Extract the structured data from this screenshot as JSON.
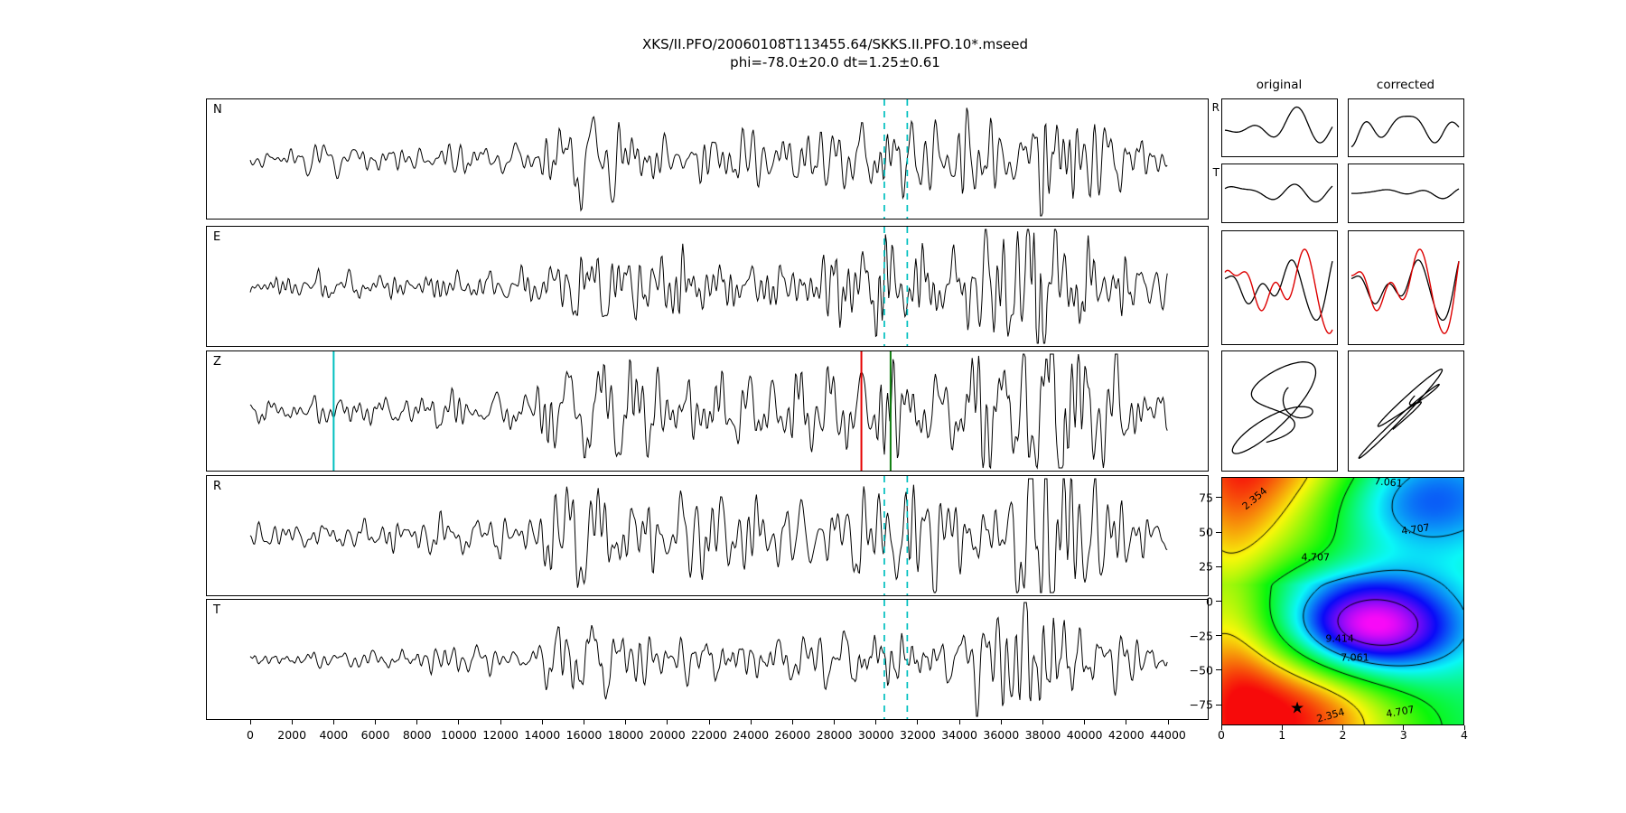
{
  "title": {
    "line1": "XKS/II.PFO/20060108T113455.64/SKKS.II.PFO.10*.mseed",
    "line2": "phi=-78.0±20.0 dt=1.25±0.61"
  },
  "chart_data": {
    "type": "seismic-shear-wave-splitting-diagnostic",
    "colors": {
      "trace": "#000000",
      "window": "#00bfbf",
      "pick_cyan": "#00bfbf",
      "pick_red": "#e60000",
      "pick_green": "#0e7d0e",
      "compare_red": "#dd0000",
      "background": "#ffffff"
    },
    "x_axis": {
      "min": 0,
      "max": 44000,
      "tick_step": 2000,
      "ticks": [
        0,
        2000,
        4000,
        6000,
        8000,
        10000,
        12000,
        14000,
        16000,
        18000,
        20000,
        22000,
        24000,
        26000,
        28000,
        30000,
        32000,
        34000,
        36000,
        38000,
        40000,
        42000,
        44000
      ]
    },
    "panels": [
      {
        "label": "N",
        "seed": 11,
        "scale": 0.95,
        "window": true
      },
      {
        "label": "E",
        "seed": 23,
        "scale": 0.9,
        "window": true
      },
      {
        "label": "Z",
        "seed": 37,
        "scale": 1.15,
        "window": false,
        "picks": [
          {
            "x": 4000,
            "color": "cyan"
          },
          {
            "x": 29300,
            "color": "red"
          },
          {
            "x": 30700,
            "color": "green"
          }
        ]
      },
      {
        "label": "R",
        "seed": 47,
        "scale": 1.0,
        "window": true
      },
      {
        "label": "T",
        "seed": 59,
        "scale": 0.68,
        "window": true
      }
    ],
    "window": {
      "start": 30400,
      "end": 31500
    },
    "envelope": [
      [
        0,
        0.16
      ],
      [
        3500,
        0.2
      ],
      [
        9000,
        0.27
      ],
      [
        13500,
        0.3
      ],
      [
        15000,
        0.8
      ],
      [
        17500,
        0.75
      ],
      [
        20500,
        0.55
      ],
      [
        24500,
        0.5
      ],
      [
        28500,
        0.62
      ],
      [
        30500,
        0.85
      ],
      [
        33000,
        0.7
      ],
      [
        35500,
        0.8
      ],
      [
        37000,
        1.35
      ],
      [
        38500,
        1.55
      ],
      [
        39800,
        1.05
      ],
      [
        41500,
        0.68
      ],
      [
        43000,
        0.4
      ],
      [
        44000,
        0.22
      ]
    ],
    "side": {
      "headers": [
        "original",
        "corrected"
      ],
      "row_labels": [
        "R",
        "T"
      ],
      "wavelet_R": {
        "seed": 101,
        "cycles": 2.4,
        "amp": 0.36
      },
      "wavelet_T": {
        "seed": 103,
        "cycles": 2.1,
        "amp_orig": 0.17,
        "amp_corr": 0.11
      },
      "compare": {
        "seed": 105,
        "cycles": 3.0,
        "shift_orig": 0.12,
        "shift_corr": 0.015,
        "red_amp": 1.4
      },
      "motion": {
        "seed": 107,
        "mix_orig": [
          0.25,
          0.95
        ],
        "mix_corr": [
          0.85,
          0.4
        ]
      }
    },
    "contour": {
      "xlim": [
        0,
        4
      ],
      "ylim": [
        -90,
        90
      ],
      "xticks": [
        "0",
        "1",
        "2",
        "3",
        "4"
      ],
      "yticks": [
        {
          "v": 75,
          "label": "75"
        },
        {
          "v": 50,
          "label": "50"
        },
        {
          "v": 25,
          "label": "25"
        },
        {
          "v": 0,
          "label": "0"
        },
        {
          "v": -25,
          "label": "−25"
        },
        {
          "v": -50,
          "label": "−50"
        },
        {
          "v": -75,
          "label": "−75"
        }
      ],
      "levels": [
        2.354,
        4.707,
        7.061,
        9.414
      ],
      "labels": [
        {
          "text": "2.354",
          "dt": 0.55,
          "phi": 74,
          "rot": -40
        },
        {
          "text": "7.061",
          "dt": 2.75,
          "phi": 86,
          "rot": 5
        },
        {
          "text": "4.707",
          "dt": 3.2,
          "phi": 52,
          "rot": -8
        },
        {
          "text": "4.707",
          "dt": 1.55,
          "phi": 32,
          "rot": 0
        },
        {
          "text": "9.414",
          "dt": 1.95,
          "phi": -27,
          "rot": 0
        },
        {
          "text": "7.061",
          "dt": 2.2,
          "phi": -41,
          "rot": 0
        },
        {
          "text": "2.354",
          "dt": 1.8,
          "phi": -83,
          "rot": -15
        },
        {
          "text": "4.707",
          "dt": 2.95,
          "phi": -80,
          "rot": -10
        }
      ],
      "star": {
        "dt": 1.25,
        "phi": -78
      },
      "field": {
        "base": 5.5,
        "ridge": {
          "amp": -1.8,
          "sigma_dt": 0.9
        },
        "bumps": [
          {
            "amp": -4.9,
            "dt0": 1.25,
            "sdt": 1.3,
            "phi0": -78,
            "sphi": 55,
            "periodic": true
          },
          {
            "amp": 6.8,
            "dt0": 2.35,
            "sdt": 1.05,
            "phi0": -20,
            "sphi": 26,
            "periodic": true
          },
          {
            "amp": 3.6,
            "dt0": 2.9,
            "sdt": 1.3,
            "phi0": 75,
            "sphi": 30,
            "periodic": false
          }
        ],
        "clip": [
          0.3,
          10.8
        ],
        "color_min": 0.5,
        "color_max": 10.5
      }
    }
  }
}
